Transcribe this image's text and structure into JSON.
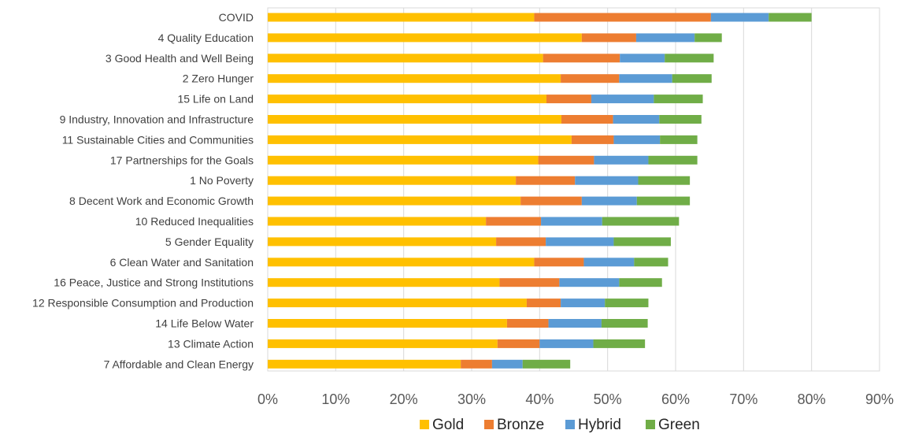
{
  "chart_data": {
    "type": "bar",
    "orientation": "horizontal",
    "stacked": true,
    "title": "",
    "xlabel": "",
    "ylabel": "",
    "xlim": [
      0,
      90
    ],
    "x_ticks": [
      "0%",
      "10%",
      "20%",
      "30%",
      "40%",
      "50%",
      "60%",
      "70%",
      "80%",
      "90%"
    ],
    "grid": "vertical",
    "legend_position": "bottom",
    "categories": [
      "COVID",
      "4 Quality Education",
      "3 Good Health and Well Being",
      "2 Zero Hunger",
      "15 Life on Land",
      "9 Industry, Innovation and Infrastructure",
      "11 Sustainable Cities and Communities",
      "17 Partnerships for the Goals",
      "1 No Poverty",
      "8 Decent Work and Economic Growth",
      "10 Reduced Inequalities",
      "5 Gender Equality",
      "6 Clean Water and Sanitation",
      "16 Peace, Justice and Strong Institutions",
      "12 Responsible Consumption and Production",
      "14 Life Below Water",
      "13 Climate Action",
      "7 Affordable and Clean Energy"
    ],
    "series": [
      {
        "name": "Gold",
        "color": "#FFC000",
        "values": [
          39.2,
          46.2,
          40.5,
          43.1,
          41.0,
          43.2,
          44.7,
          39.8,
          36.5,
          37.2,
          32.1,
          33.6,
          39.2,
          34.1,
          38.1,
          35.2,
          33.8,
          28.4
        ]
      },
      {
        "name": "Bronze",
        "color": "#ED7D31",
        "values": [
          26.0,
          8.0,
          11.3,
          8.6,
          6.6,
          7.6,
          6.2,
          8.2,
          8.7,
          9.0,
          8.1,
          7.3,
          7.3,
          8.8,
          5.0,
          6.1,
          6.2,
          4.6
        ]
      },
      {
        "name": "Hybrid",
        "color": "#5B9BD5",
        "values": [
          8.5,
          8.6,
          6.6,
          7.8,
          9.2,
          6.8,
          6.8,
          8.0,
          9.3,
          8.1,
          9.0,
          10.0,
          7.4,
          8.8,
          6.5,
          7.8,
          7.9,
          4.5
        ]
      },
      {
        "name": "Green",
        "color": "#70AD47",
        "values": [
          6.3,
          4.0,
          7.2,
          5.8,
          7.2,
          6.2,
          5.5,
          7.2,
          7.6,
          7.8,
          11.3,
          8.4,
          5.0,
          6.3,
          6.4,
          6.8,
          7.6,
          7.0
        ]
      }
    ]
  }
}
